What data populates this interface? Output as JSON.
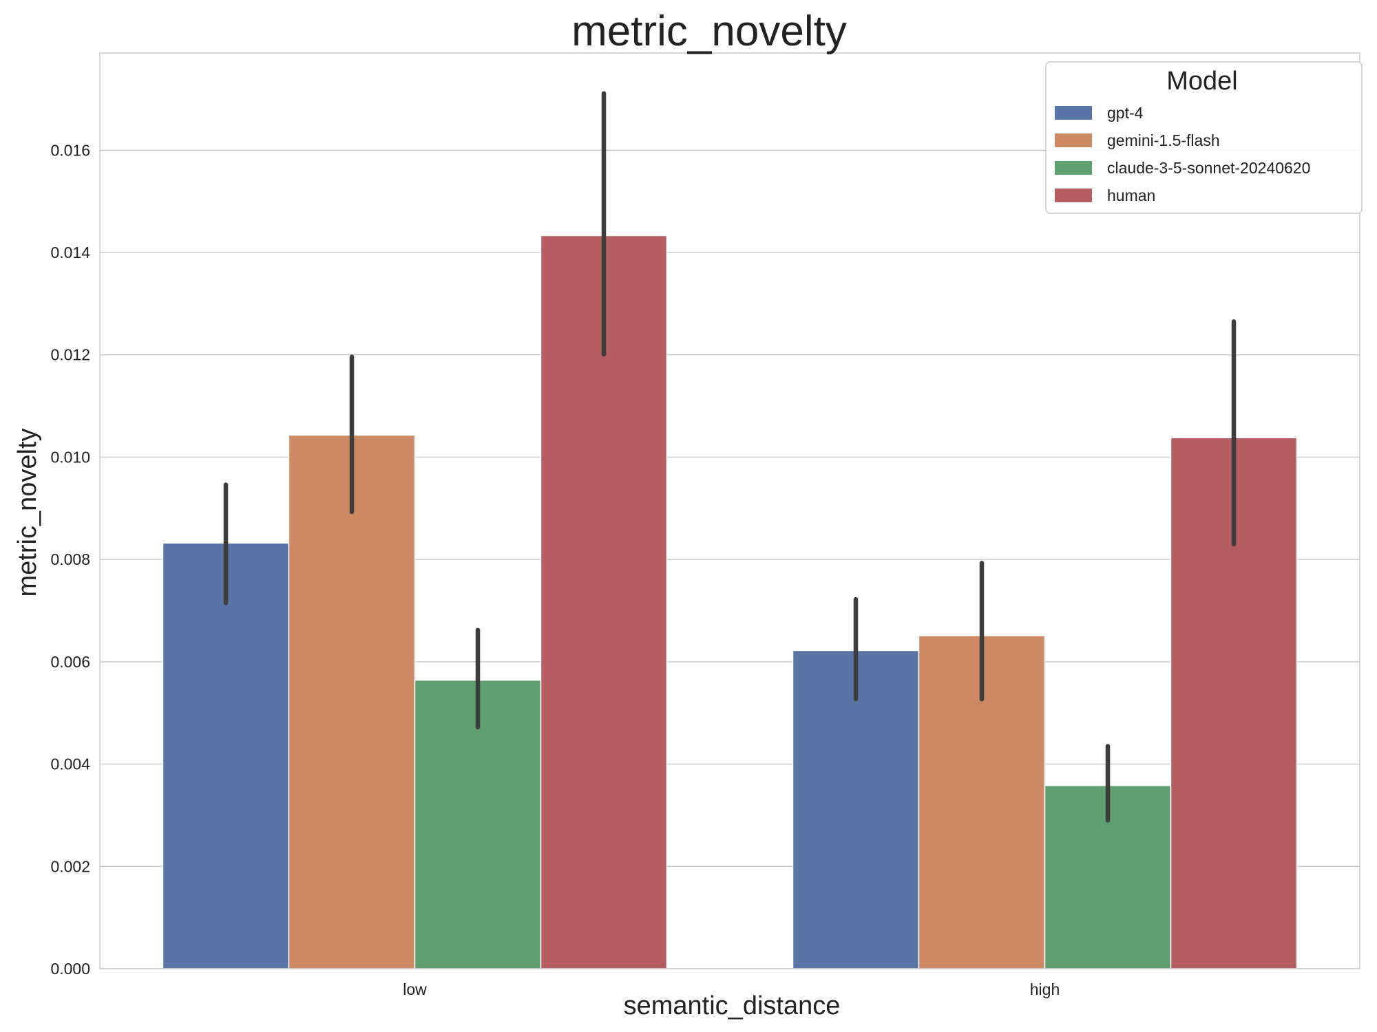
{
  "chart_data": {
    "type": "bar",
    "title": "metric_novelty",
    "xlabel": "semantic_distance",
    "ylabel": "metric_novelty",
    "categories": [
      "low",
      "high"
    ],
    "ylim": [
      0,
      0.0179
    ],
    "yticks": [
      "0.000",
      "0.002",
      "0.004",
      "0.006",
      "0.008",
      "0.010",
      "0.012",
      "0.014",
      "0.016"
    ],
    "grid": true,
    "legend": {
      "title": "Model",
      "placement": "top-right"
    },
    "series": [
      {
        "name": "gpt-4",
        "color": "#5975a6",
        "values": [
          0.00832,
          0.00622
        ],
        "ci_low": [
          0.00715,
          0.00527
        ],
        "ci_high": [
          0.00946,
          0.00722
        ]
      },
      {
        "name": "gemini-1.5-flash",
        "color": "#cc8963",
        "values": [
          0.01043,
          0.00651
        ],
        "ci_low": [
          0.00893,
          0.00527
        ],
        "ci_high": [
          0.01196,
          0.00793
        ]
      },
      {
        "name": "claude-3-5-sonnet-20240620",
        "color": "#5f9e6e",
        "values": [
          0.00564,
          0.00358
        ],
        "ci_low": [
          0.00472,
          0.0029
        ],
        "ci_high": [
          0.00662,
          0.00435
        ]
      },
      {
        "name": "human",
        "color": "#b55d60",
        "values": [
          0.01433,
          0.01038
        ],
        "ci_low": [
          0.01201,
          0.0083
        ],
        "ci_high": [
          0.01711,
          0.01265
        ]
      }
    ]
  }
}
